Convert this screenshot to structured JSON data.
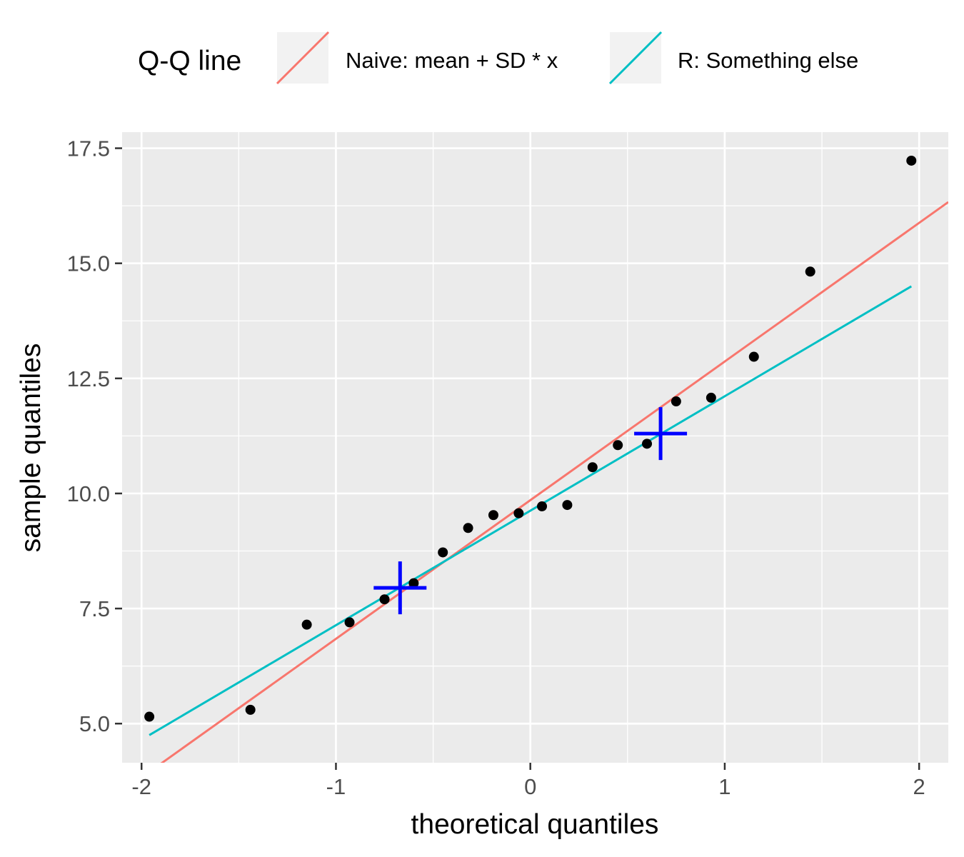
{
  "chart_data": {
    "type": "scatter",
    "xlabel": "theoretical quantiles",
    "ylabel": "sample quantiles",
    "xlim": [
      -2.1,
      2.15
    ],
    "ylim": [
      4.15,
      17.85
    ],
    "x_ticks": [
      {
        "value": -2,
        "label": "-2"
      },
      {
        "value": -1,
        "label": "-1"
      },
      {
        "value": 0,
        "label": "0"
      },
      {
        "value": 1,
        "label": "1"
      },
      {
        "value": 2,
        "label": "2"
      }
    ],
    "y_ticks": [
      {
        "value": 5.0,
        "label": "5.0"
      },
      {
        "value": 7.5,
        "label": "7.5"
      },
      {
        "value": 10.0,
        "label": "10.0"
      },
      {
        "value": 12.5,
        "label": "12.5"
      },
      {
        "value": 15.0,
        "label": "15.0"
      },
      {
        "value": 17.5,
        "label": "17.5"
      }
    ],
    "grid": true,
    "legend": {
      "title": "Q-Q line",
      "position": "top",
      "entries": [
        {
          "label": "Naive: mean + SD * x",
          "color": "#F8766D"
        },
        {
          "label": "R: Something else",
          "color": "#00BFC4"
        }
      ]
    },
    "points": [
      {
        "x": -1.96,
        "y": 5.15
      },
      {
        "x": -1.44,
        "y": 5.3
      },
      {
        "x": -1.15,
        "y": 7.15
      },
      {
        "x": -0.93,
        "y": 7.2
      },
      {
        "x": -0.75,
        "y": 7.7
      },
      {
        "x": -0.6,
        "y": 8.05
      },
      {
        "x": -0.45,
        "y": 8.72
      },
      {
        "x": -0.32,
        "y": 9.25
      },
      {
        "x": -0.19,
        "y": 9.53
      },
      {
        "x": -0.06,
        "y": 9.57
      },
      {
        "x": 0.06,
        "y": 9.72
      },
      {
        "x": 0.19,
        "y": 9.75
      },
      {
        "x": 0.32,
        "y": 10.57
      },
      {
        "x": 0.45,
        "y": 11.05
      },
      {
        "x": 0.6,
        "y": 11.08
      },
      {
        "x": 0.75,
        "y": 12.0
      },
      {
        "x": 0.93,
        "y": 12.08
      },
      {
        "x": 1.15,
        "y": 12.97
      },
      {
        "x": 1.44,
        "y": 14.82
      },
      {
        "x": 1.96,
        "y": 17.23
      }
    ],
    "points_color": "#000000",
    "lines": [
      {
        "name": "Naive: mean + SD * x",
        "color": "#F8766D",
        "x": [
          -1.96,
          2.15
        ],
        "y": [
          3.95,
          16.33
        ]
      },
      {
        "name": "R: Something else",
        "color": "#00BFC4",
        "x": [
          -1.96,
          1.96
        ],
        "y": [
          4.75,
          14.5
        ]
      }
    ],
    "markers": [
      {
        "shape": "cross",
        "color": "#0000FF",
        "x": -0.67,
        "y": 7.95
      },
      {
        "shape": "cross",
        "color": "#0000FF",
        "x": 0.67,
        "y": 11.3
      }
    ],
    "panel_background": "#EBEBEB",
    "grid_color": "#FFFFFF"
  }
}
